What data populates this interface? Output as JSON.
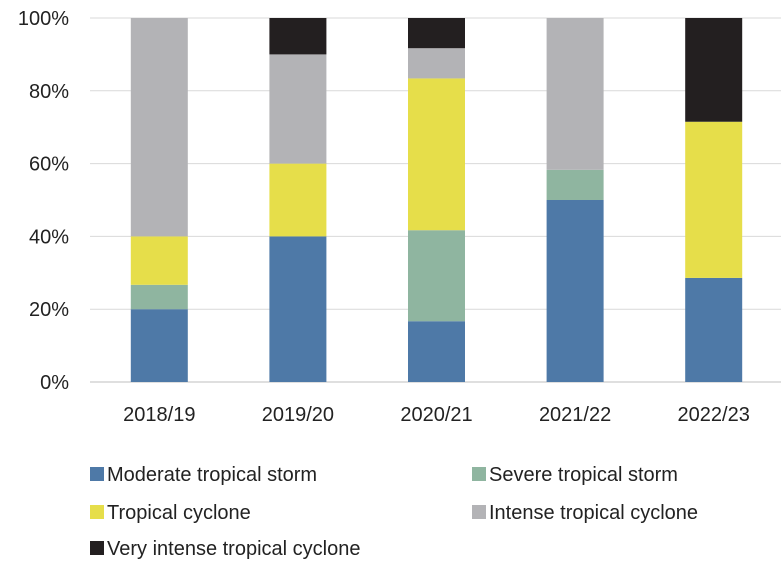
{
  "chart_data": {
    "type": "bar",
    "stacked": true,
    "normalized": true,
    "categories": [
      "2018/19",
      "2019/20",
      "2020/21",
      "2021/22",
      "2022/23"
    ],
    "y_ticks": [
      "0%",
      "20%",
      "40%",
      "60%",
      "80%",
      "100%"
    ],
    "ylim": [
      0,
      100
    ],
    "grid": true,
    "legend_position": "bottom",
    "series": [
      {
        "name": "Moderate tropical storm",
        "color": "#4e79a7",
        "values": [
          20,
          40,
          16.7,
          50,
          28.6
        ]
      },
      {
        "name": "Severe tropical storm",
        "color": "#8fb5a0",
        "values": [
          6.7,
          0,
          25,
          8.3,
          0
        ]
      },
      {
        "name": "Tropical cyclone",
        "color": "#e6de4a",
        "values": [
          13.3,
          20,
          41.7,
          0,
          42.9
        ]
      },
      {
        "name": "Intense tropical cyclone",
        "color": "#b3b3b6",
        "values": [
          60,
          30,
          8.3,
          41.7,
          0
        ]
      },
      {
        "name": "Very intense tropical cyclone",
        "color": "#231f20",
        "values": [
          0,
          10,
          8.3,
          0,
          28.5
        ]
      }
    ]
  }
}
